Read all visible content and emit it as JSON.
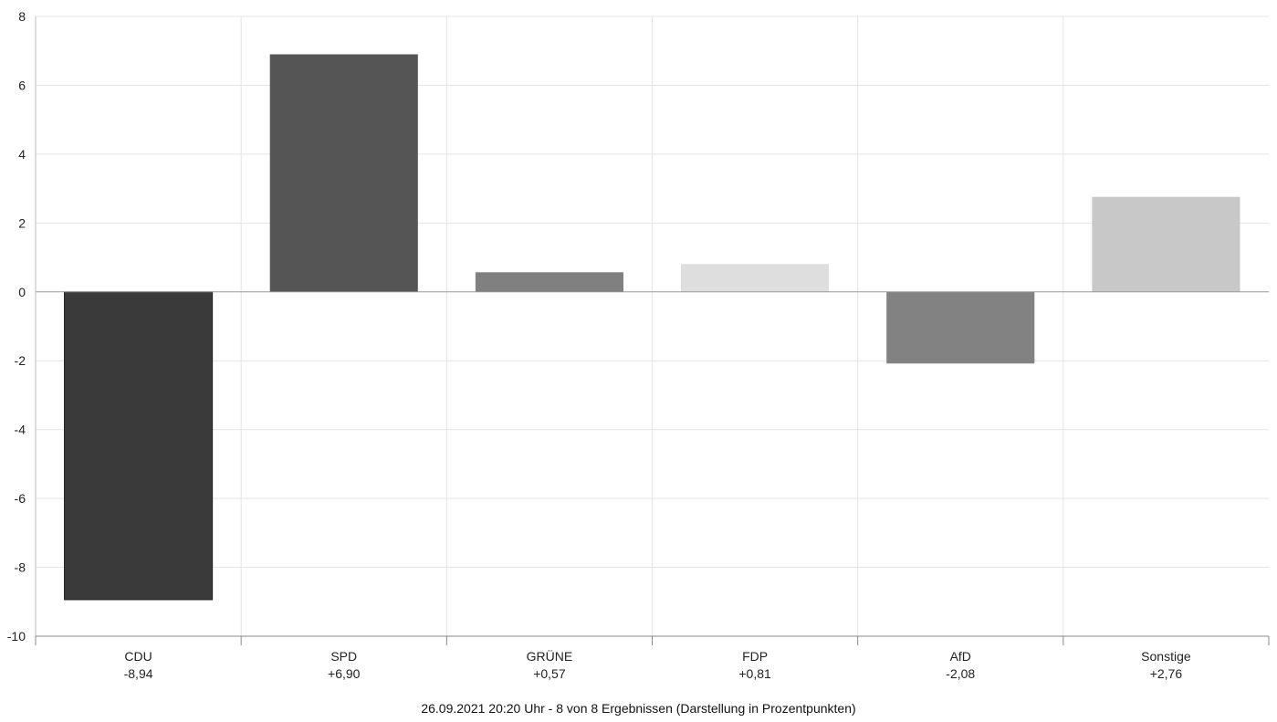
{
  "chart_data": {
    "type": "bar",
    "title": "",
    "xlabel": "",
    "ylabel": "",
    "ylim": [
      -10,
      8
    ],
    "yticks": [
      8,
      6,
      4,
      2,
      0,
      -2,
      -4,
      -6,
      -8,
      -10
    ],
    "grid": true,
    "categories": [
      "CDU",
      "SPD",
      "GRÜNE",
      "FDP",
      "AfD",
      "Sonstige"
    ],
    "values": [
      -8.94,
      6.9,
      0.57,
      0.81,
      -2.08,
      2.76
    ],
    "value_labels": [
      "-8,94",
      "+6,90",
      "+0,57",
      "+0,81",
      "-2,08",
      "+2,76"
    ],
    "colors": [
      "#3a3a3a",
      "#555555",
      "#808080",
      "#dedede",
      "#828282",
      "#c8c8c8"
    ]
  },
  "caption": "26.09.2021 20:20 Uhr - 8 von 8 Ergebnissen (Darstellung in Prozentpunkten)"
}
